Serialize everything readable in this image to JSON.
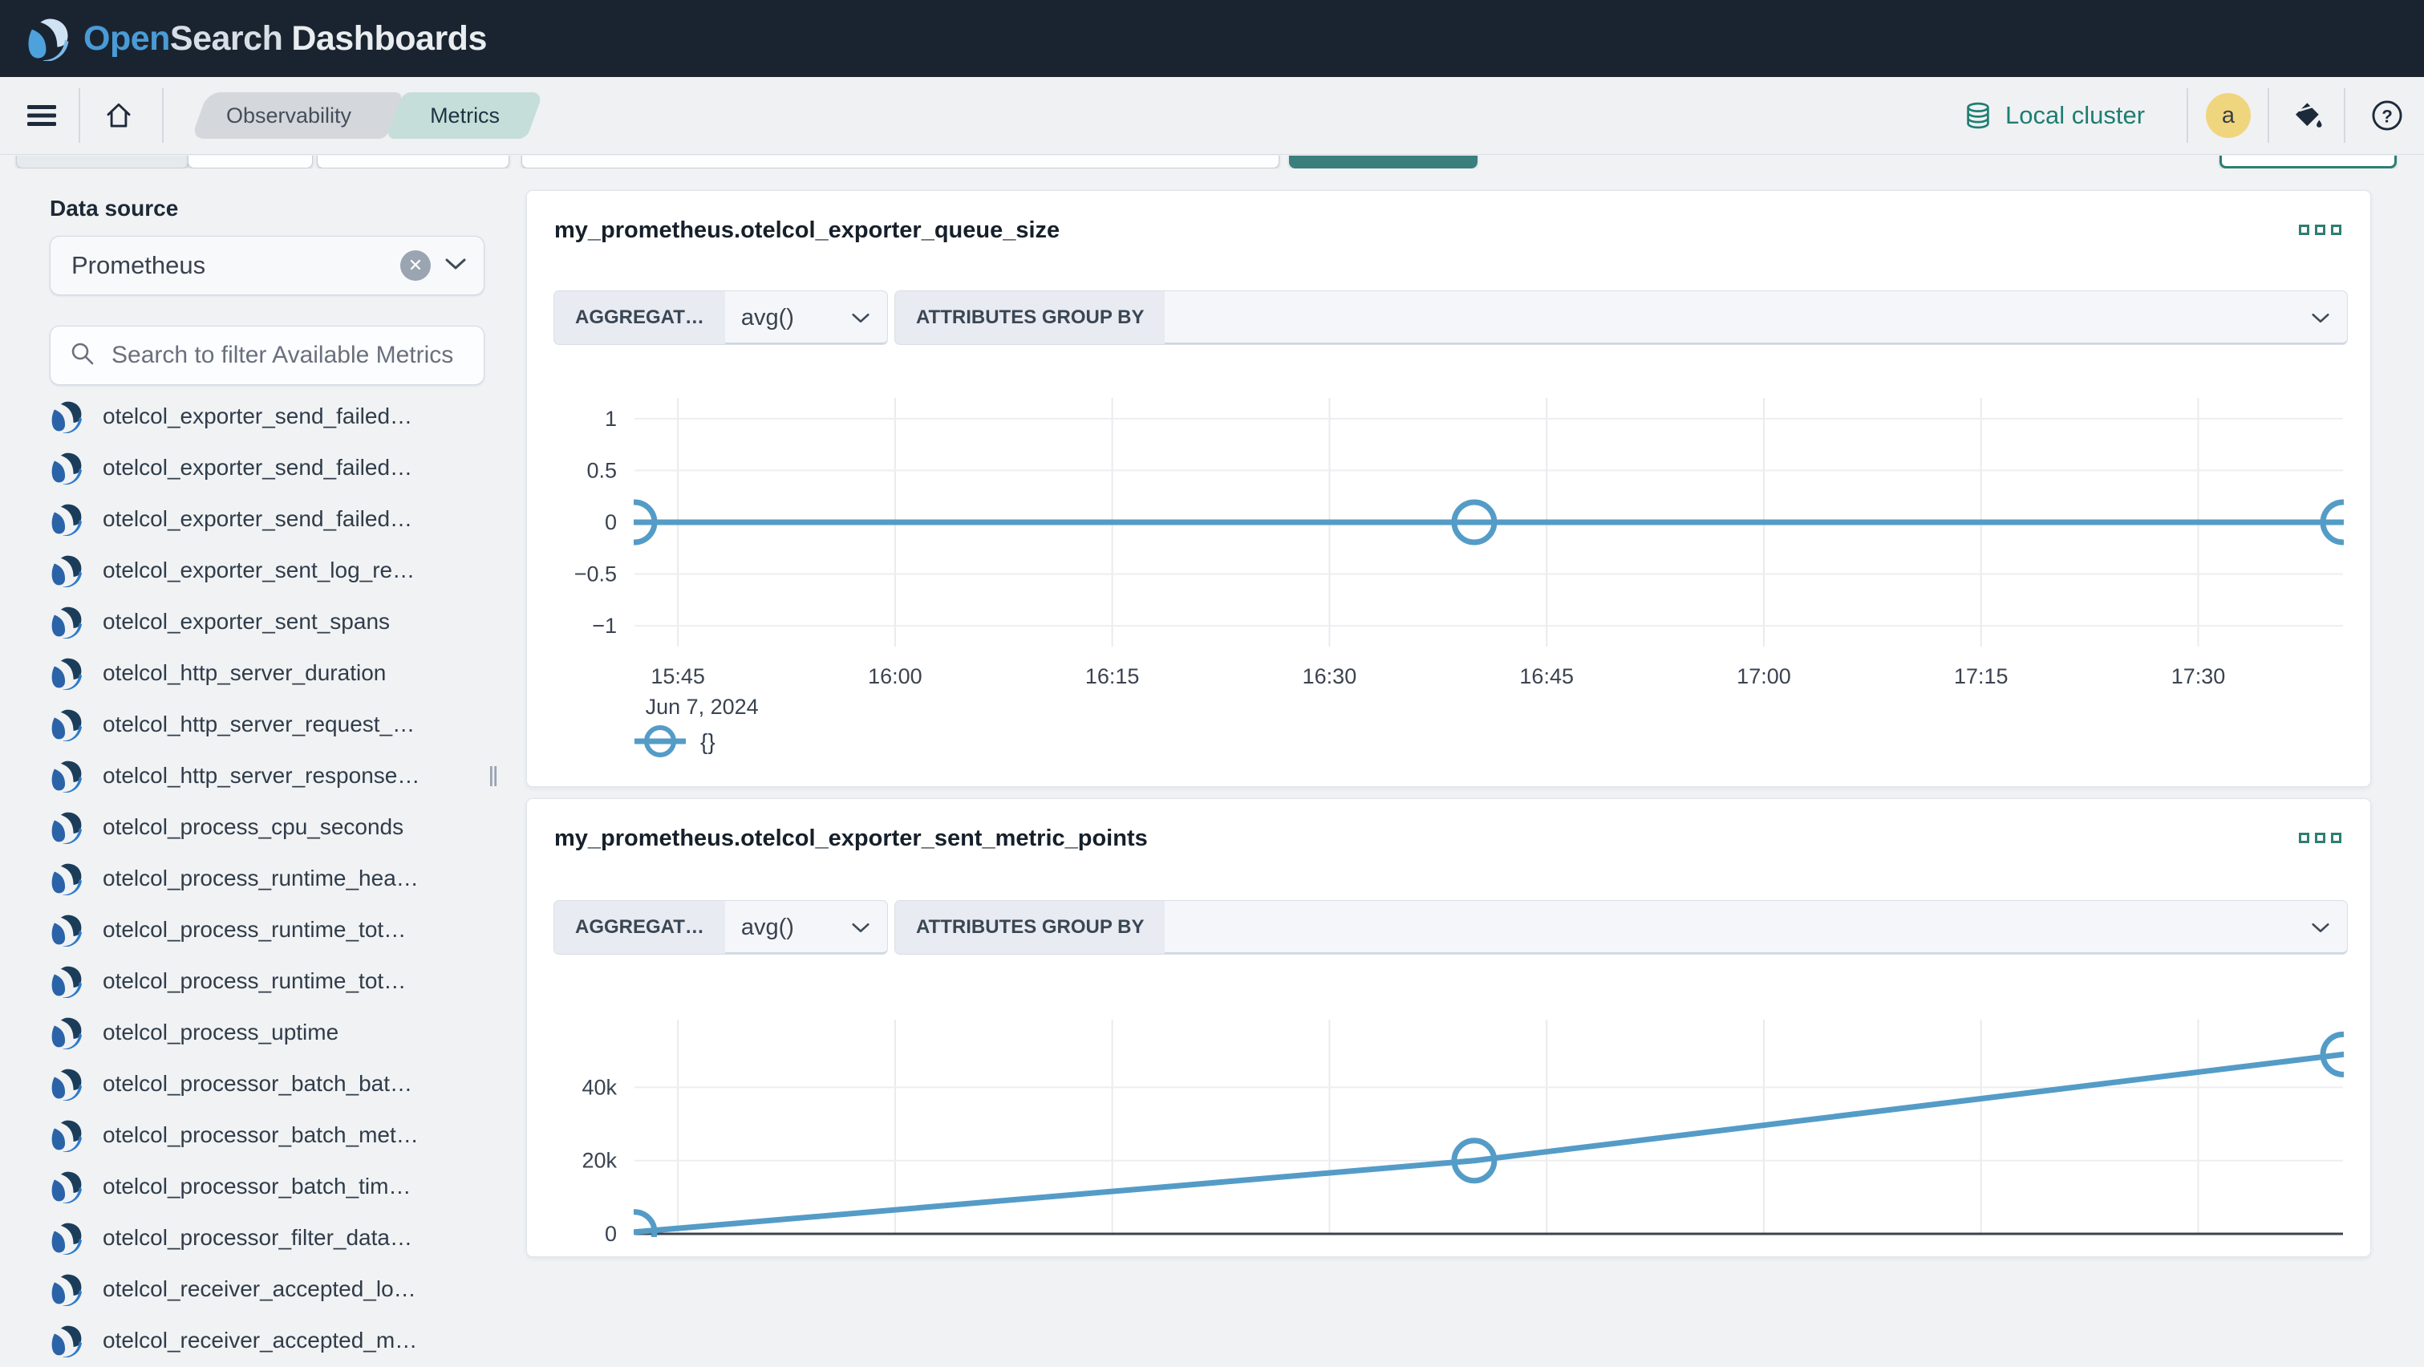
{
  "app": {
    "brand_open": "Open",
    "brand_search": "Search",
    "brand_suffix": "Dashboards"
  },
  "nav": {
    "breadcrumbs": [
      {
        "label": "Observability"
      },
      {
        "label": "Metrics",
        "active": true
      }
    ],
    "cluster_label": "Local cluster",
    "avatar_initial": "a"
  },
  "sidebar": {
    "datasource_label": "Data source",
    "datasource_value": "Prometheus",
    "search_placeholder": "Search to filter Available Metrics",
    "resize_handle": "‖",
    "metrics": [
      "otelcol_exporter_send_failed…",
      "otelcol_exporter_send_failed…",
      "otelcol_exporter_send_failed…",
      "otelcol_exporter_sent_log_re…",
      "otelcol_exporter_sent_spans",
      "otelcol_http_server_duration",
      "otelcol_http_server_request_…",
      "otelcol_http_server_response…",
      "otelcol_process_cpu_seconds",
      "otelcol_process_runtime_hea…",
      "otelcol_process_runtime_tot…",
      "otelcol_process_runtime_tot…",
      "otelcol_process_uptime",
      "otelcol_processor_batch_bat…",
      "otelcol_processor_batch_met…",
      "otelcol_processor_batch_tim…",
      "otelcol_processor_filter_data…",
      "otelcol_receiver_accepted_lo…",
      "otelcol_receiver_accepted_m…"
    ]
  },
  "panels": [
    {
      "title": "my_prometheus.otelcol_exporter_queue_size",
      "aggregation_label": "AGGREGAT…",
      "aggregation_value": "avg()",
      "groupby_label": "ATTRIBUTES GROUP BY",
      "legend": "{}"
    },
    {
      "title": "my_prometheus.otelcol_exporter_sent_metric_points",
      "aggregation_label": "AGGREGAT…",
      "aggregation_value": "avg()",
      "groupby_label": "ATTRIBUTES GROUP BY",
      "legend": "{}"
    }
  ],
  "chart_data": [
    {
      "type": "line",
      "title": "my_prometheus.otelcol_exporter_queue_size",
      "xlabel": "",
      "ylabel": "",
      "xlim": [
        "15:42",
        "17:40"
      ],
      "x_ticks": [
        "15:45",
        "16:00",
        "16:15",
        "16:30",
        "16:45",
        "17:00",
        "17:15",
        "17:30"
      ],
      "x_date_label": "Jun 7, 2024",
      "ylim": [
        -1.2,
        1.2
      ],
      "y_ticks": [
        1,
        0.5,
        0,
        -0.5,
        -1
      ],
      "y_tick_labels": [
        "1",
        "0.5",
        "0",
        "−0.5",
        "−1"
      ],
      "series": [
        {
          "name": "{}",
          "points": [
            [
              "15:42",
              0
            ],
            [
              "16:40",
              0
            ],
            [
              "17:40",
              0
            ]
          ]
        }
      ],
      "line_color": "#549cc7",
      "grid": true,
      "legend_position": "bottom-left",
      "show_x_axis_line": false,
      "show_legend": true
    },
    {
      "type": "line",
      "title": "my_prometheus.otelcol_exporter_sent_metric_points",
      "xlabel": "",
      "ylabel": "",
      "xlim": [
        "15:42",
        "17:40"
      ],
      "x_ticks": [
        "15:45",
        "16:00",
        "16:15",
        "16:30",
        "16:45",
        "17:00",
        "17:15",
        "17:30"
      ],
      "ylim": [
        0,
        58500
      ],
      "y_ticks": [
        40000,
        20000,
        0
      ],
      "y_tick_labels": [
        "40k",
        "20k",
        "0"
      ],
      "series": [
        {
          "name": "{}",
          "points": [
            [
              "15:42",
              500
            ],
            [
              "16:40",
              20000
            ],
            [
              "17:40",
              49000
            ]
          ]
        }
      ],
      "line_color": "#549cc7",
      "grid": true,
      "legend_position": "bottom-left",
      "show_x_axis_line": true,
      "show_legend": false
    }
  ],
  "colors": {
    "accent_teal": "#2e7e72",
    "chart_line": "#549cc7",
    "header_bg": "#1a2430",
    "brand_blue": "#4a9bd5",
    "avatar_bg": "#f0d57f"
  }
}
